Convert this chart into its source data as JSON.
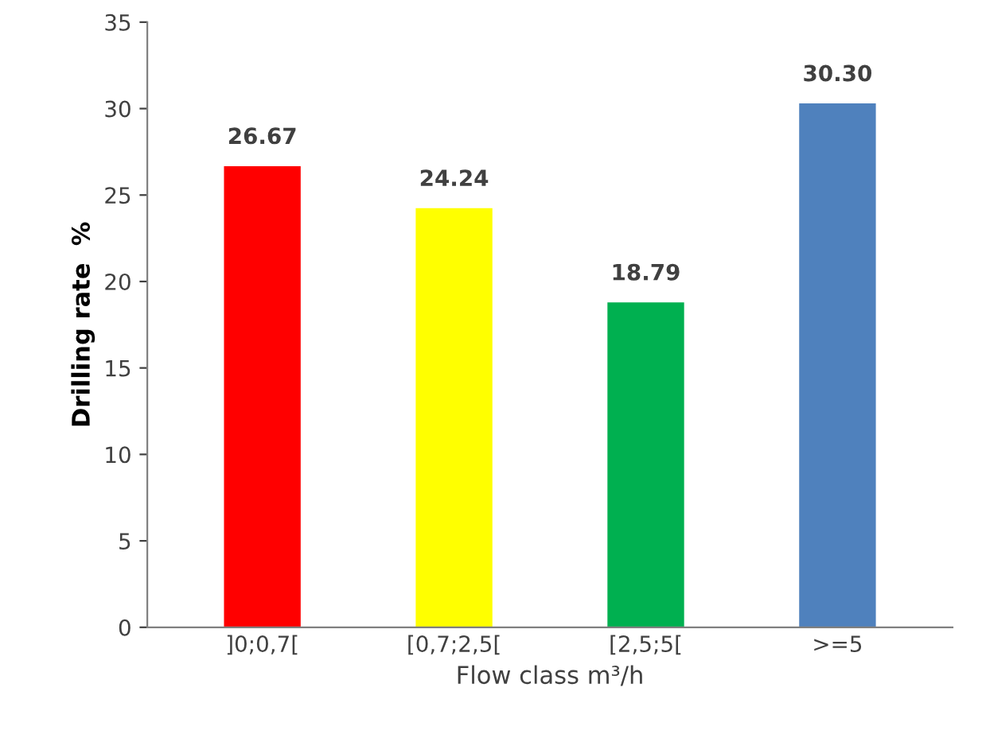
{
  "chart_data": {
    "type": "bar",
    "xlabel": "Flow class m³/h",
    "ylabel": "Drilling rate  %",
    "categories": [
      "]0;0,7[",
      "[0,7;2,5[",
      "[2,5;5[",
      ">=5"
    ],
    "values": [
      26.67,
      24.24,
      18.79,
      30.3
    ],
    "colors": [
      "#ff0000",
      "#ffff00",
      "#00b050",
      "#4f81bd"
    ],
    "value_labels": [
      "26.67",
      "24.24",
      "18.79",
      "30.30"
    ],
    "ylim": [
      0,
      35
    ],
    "yticks": [
      0,
      5,
      10,
      15,
      20,
      25,
      30,
      35
    ],
    "grid": false,
    "legend": false
  }
}
